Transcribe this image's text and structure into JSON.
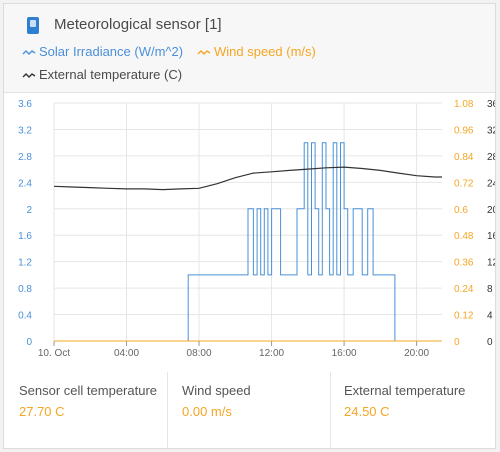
{
  "widget": {
    "title": "Meteorological sensor [1]",
    "icon": "device-icon"
  },
  "legend": [
    {
      "label": "Solar Irradiance (W/m^2)",
      "color": "#4a90d9"
    },
    {
      "label": "Wind speed (m/s)",
      "color": "#f5a623"
    },
    {
      "label": "External temperature (C)",
      "color": "#333333"
    }
  ],
  "chart_data": {
    "type": "line",
    "x_ticks": [
      "10. Oct",
      "04:00",
      "08:00",
      "12:00",
      "16:00",
      "20:00"
    ],
    "y_left_ticks": [
      "0",
      "0.4",
      "0.8",
      "1.2",
      "1.6",
      "2",
      "2.4",
      "2.8",
      "3.2",
      "3.6"
    ],
    "y_right_ticks": [
      "0",
      "0.12",
      "0.24",
      "0.36",
      "0.48",
      "0.6",
      "0.72",
      "0.84",
      "0.96",
      "1.08"
    ],
    "y_right2_ticks": [
      "0",
      "4",
      "8",
      "12",
      "16",
      "20",
      "24",
      "28",
      "32",
      "36"
    ],
    "x_range_hours": [
      0,
      21.4
    ],
    "y_left_range": [
      0,
      3.6
    ],
    "series": [
      {
        "name": "Solar Irradiance (W/m^2)",
        "color": "#4a90d9",
        "axis": "left",
        "x": [
          0,
          7.4,
          7.4,
          10.7,
          10.7,
          11.0,
          11.0,
          11.2,
          11.2,
          11.4,
          11.4,
          11.6,
          11.6,
          11.8,
          11.8,
          12.0,
          12.0,
          12.5,
          12.5,
          13.4,
          13.4,
          13.8,
          13.8,
          14.0,
          14.0,
          14.2,
          14.2,
          14.4,
          14.4,
          14.6,
          14.6,
          14.8,
          14.8,
          15.0,
          15.0,
          15.2,
          15.2,
          15.4,
          15.4,
          15.6,
          15.6,
          15.8,
          15.8,
          16.0,
          16.0,
          16.2,
          16.2,
          16.5,
          16.5,
          17.0,
          17.0,
          17.3,
          17.3,
          17.6,
          17.6,
          18.8,
          18.8,
          21.4
        ],
        "y": [
          0,
          0,
          1.0,
          1.0,
          2.0,
          2.0,
          1.0,
          1.0,
          2.0,
          2.0,
          1.0,
          1.0,
          2.0,
          2.0,
          1.0,
          1.0,
          2.0,
          2.0,
          1.0,
          1.0,
          2.0,
          2.0,
          3.0,
          3.0,
          1.0,
          1.0,
          3.0,
          3.0,
          2.0,
          2.0,
          1.0,
          1.0,
          3.0,
          3.0,
          2.0,
          2.0,
          1.0,
          1.0,
          3.0,
          3.0,
          1.0,
          1.0,
          3.0,
          3.0,
          2.0,
          2.0,
          1.0,
          1.0,
          2.0,
          2.0,
          1.0,
          1.0,
          2.0,
          2.0,
          1.0,
          1.0,
          0,
          0
        ]
      },
      {
        "name": "Wind speed (m/s)",
        "color": "#f5a623",
        "axis": "right",
        "x": [
          0,
          21.4
        ],
        "y": [
          0,
          0
        ]
      },
      {
        "name": "External temperature (C)",
        "color": "#333333",
        "axis": "right2",
        "x": [
          0,
          1,
          2,
          3,
          4,
          5,
          6,
          7,
          8,
          9,
          10,
          11,
          12,
          13,
          14,
          15,
          16,
          17,
          18,
          19,
          20,
          21,
          21.4
        ],
        "y": [
          2.34,
          2.33,
          2.32,
          2.31,
          2.3,
          2.3,
          2.29,
          2.3,
          2.31,
          2.38,
          2.47,
          2.54,
          2.56,
          2.58,
          2.6,
          2.62,
          2.63,
          2.61,
          2.58,
          2.54,
          2.5,
          2.48,
          2.48
        ]
      }
    ]
  },
  "stats": [
    {
      "label": "Sensor cell temperature",
      "value": "27.70 C"
    },
    {
      "label": "Wind speed",
      "value": "0.00 m/s"
    },
    {
      "label": "External temperature",
      "value": "24.50 C"
    }
  ]
}
